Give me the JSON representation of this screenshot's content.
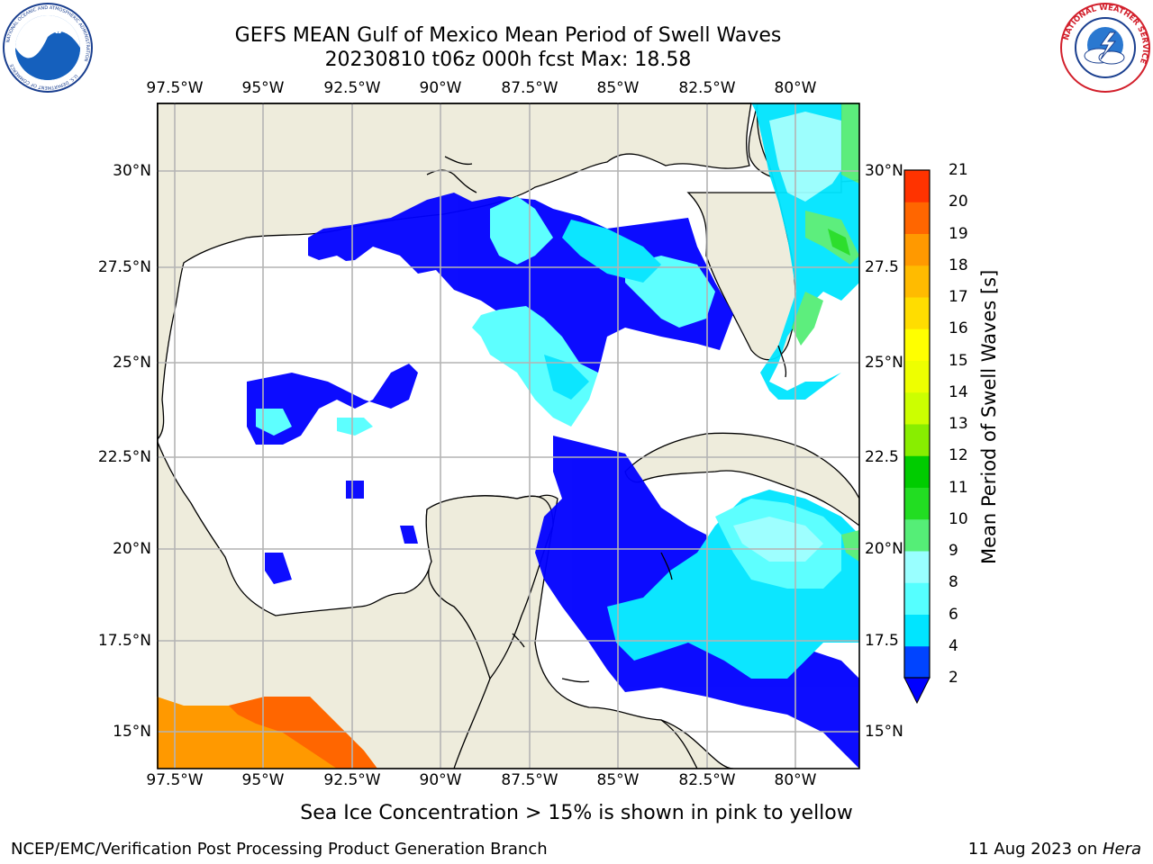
{
  "title_line1": "GEFS MEAN Gulf of Mexico Mean Period of Swell Waves",
  "title_line2": "20230810 t06z 000h fcst   Max: 18.58",
  "logos": {
    "noaa_text": "NOAA",
    "noaa_ring_text": "NATIONAL OCEANIC AND ATMOSPHERIC ADMINISTRATION",
    "noaa_bottom_text": "U.S. DEPARTMENT OF COMMERCE",
    "nws_ring_text": "NATIONAL WEATHER SERVICE"
  },
  "map": {
    "lon_ticks_top": [
      "97.5°W",
      "95°W",
      "92.5°W",
      "90°W",
      "87.5°W",
      "85°W",
      "82.5°W",
      "80°W"
    ],
    "lon_ticks_bottom": [
      "97.5°W",
      "95°W",
      "92.5°W",
      "90°W",
      "87.5°W",
      "85°W",
      "82.5°W",
      "80°W"
    ],
    "lat_ticks_left": [
      "30°N",
      "27.5°N",
      "25°N",
      "22.5°N",
      "20°N",
      "17.5°N",
      "15°N"
    ],
    "lat_ticks_right": [
      "30°N",
      "27.5",
      "25°N",
      "22.5",
      "20°N",
      "17.5",
      "15°N"
    ],
    "max_value": 18.58,
    "colors": {
      "land": "#eeecdc",
      "ocean": "#ffffff",
      "grid": "#b4b4b4",
      "coastline": "#000000"
    }
  },
  "colorbar": {
    "label": "Mean Period of Swell Waves [s]",
    "ticks": [
      "2",
      "4",
      "6",
      "8",
      "9",
      "10",
      "11",
      "12",
      "13",
      "14",
      "15",
      "16",
      "17",
      "18",
      "19",
      "20",
      "21"
    ],
    "colors": [
      "#0044ff",
      "#00e5ff",
      "#55ffff",
      "#99ffff",
      "#55ee77",
      "#22dd22",
      "#00cc00",
      "#88ee00",
      "#ccff00",
      "#eeff00",
      "#ffff00",
      "#ffdd00",
      "#ffbb00",
      "#ff9900",
      "#ff6600",
      "#ff3300"
    ],
    "under_color": "#0000ff",
    "over_color": "#ff0000"
  },
  "note": "Sea Ice Concentration > 15% is shown in pink to yellow",
  "footer_left": "NCEP/EMC/Verification Post Processing Product Generation Branch",
  "footer_right_date": "11 Aug 2023 on ",
  "footer_right_host": "Hera"
}
